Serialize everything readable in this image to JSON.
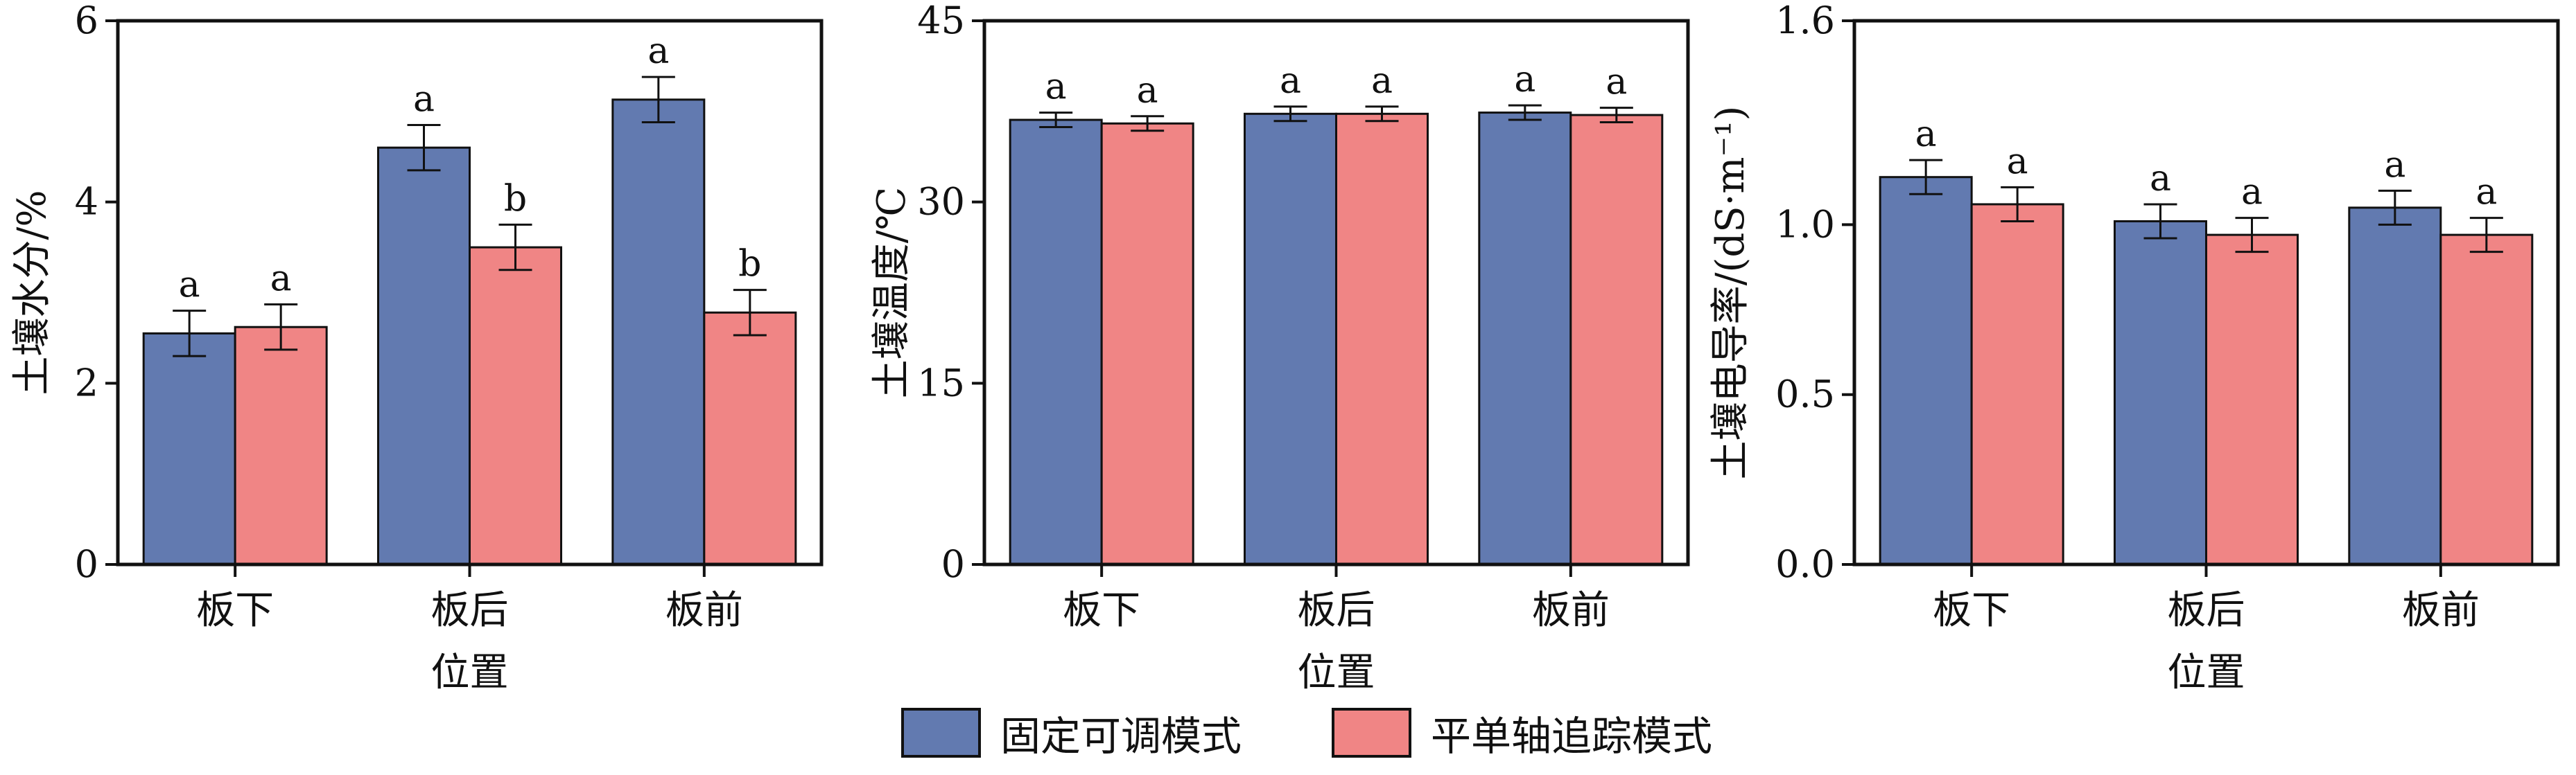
{
  "colors": {
    "fixed": "#627AB0",
    "tracking": "#F08585",
    "axis": "#111111"
  },
  "legend": {
    "fixed_label": "固定可调模式",
    "tracking_label": "平单轴追踪模式"
  },
  "chart_data": [
    {
      "type": "bar",
      "xlabel": "位置",
      "ylabel": "土壤水分/%",
      "ylim": [
        0,
        6
      ],
      "yticks": [
        "0",
        "2",
        "4",
        "6"
      ],
      "categories": [
        "板下",
        "板后",
        "板前"
      ],
      "series": [
        {
          "name": "固定可调模式",
          "values": [
            2.55,
            4.6,
            5.13
          ],
          "errors": [
            0.25,
            0.25,
            0.25
          ],
          "letters": [
            "a",
            "a",
            "a"
          ]
        },
        {
          "name": "平单轴追踪模式",
          "values": [
            2.62,
            3.5,
            2.78
          ],
          "errors": [
            0.25,
            0.25,
            0.25
          ],
          "letters": [
            "a",
            "b",
            "b"
          ]
        }
      ]
    },
    {
      "type": "bar",
      "xlabel": "位置",
      "ylabel": "土壤温度/℃",
      "ylim": [
        0,
        45
      ],
      "yticks": [
        "0",
        "15",
        "30",
        "45"
      ],
      "categories": [
        "板下",
        "板后",
        "板前"
      ],
      "series": [
        {
          "name": "固定可调模式",
          "values": [
            36.8,
            37.3,
            37.4
          ],
          "errors": [
            0.6,
            0.6,
            0.6
          ],
          "letters": [
            "a",
            "a",
            "a"
          ]
        },
        {
          "name": "平单轴追踪模式",
          "values": [
            36.5,
            37.3,
            37.2
          ],
          "errors": [
            0.6,
            0.6,
            0.6
          ],
          "letters": [
            "a",
            "a",
            "a"
          ]
        }
      ]
    },
    {
      "type": "bar",
      "xlabel": "位置",
      "ylabel": "土壤电导率/(dS·m⁻¹)",
      "ylim": [
        0,
        1.6
      ],
      "yticks": [
        "0.0",
        "0.5",
        "1.0",
        "1.6"
      ],
      "categories": [
        "板下",
        "板后",
        "板前"
      ],
      "series": [
        {
          "name": "固定可调模式",
          "values": [
            1.14,
            1.01,
            1.05
          ],
          "errors": [
            0.05,
            0.05,
            0.05
          ],
          "letters": [
            "a",
            "a",
            "a"
          ]
        },
        {
          "name": "平单轴追踪模式",
          "values": [
            1.06,
            0.97,
            0.97
          ],
          "errors": [
            0.05,
            0.05,
            0.05
          ],
          "letters": [
            "a",
            "a",
            "a"
          ]
        }
      ]
    }
  ]
}
